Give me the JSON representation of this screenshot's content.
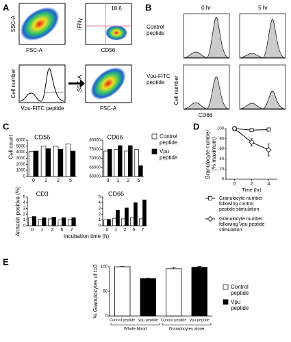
{
  "panel_labels": [
    "A",
    "B",
    "C",
    "D",
    "E"
  ],
  "flow": {
    "a_scatter1_y": "SSC-A",
    "a_scatter1_x": "FSC-A",
    "a_scatter2_y": "IFNγ",
    "a_scatter2_x": "CD56",
    "a_scatter2_gate": "18.6",
    "a_hist_y": "Cell number",
    "a_hist_x": "Vpu-FITC peptide",
    "a_scatter3_y": "SSC-A",
    "a_scatter3_x": "FSC-A",
    "b_col1": "0 hr",
    "b_col2": "5 hr",
    "b_row1": "Control peptide",
    "b_row2": "Vpu-FITC peptide",
    "b_y": "Cell number",
    "b_x": "CD66"
  },
  "chart_data": [
    {
      "type": "bar",
      "title": "CD56",
      "ylabel": "Cell count",
      "categories": [
        "0",
        "1",
        "2",
        "5"
      ],
      "series": [
        {
          "color": "#ffffff",
          "values": [
            4100,
            5000,
            5000,
            5400
          ]
        },
        {
          "color": "#000000",
          "values": [
            4200,
            4600,
            4500,
            4200
          ]
        }
      ],
      "ylim": [
        0,
        6000
      ],
      "yticks": [
        0,
        1000,
        2000,
        3000,
        4000,
        5000,
        6000
      ]
    },
    {
      "type": "bar",
      "title": "CD66",
      "categories": [
        "0",
        "1",
        "2",
        "5"
      ],
      "series": [
        {
          "name": "Control peptide",
          "color": "#ffffff",
          "values": [
            74000,
            75000,
            74000,
            75000
          ]
        },
        {
          "name": "Vpu peptide",
          "color": "#000000",
          "values": [
            75000,
            77000,
            77000,
            66000
          ]
        }
      ],
      "ylim": [
        60000,
        80000
      ],
      "yticks": [
        60000,
        65000,
        70000,
        75000,
        80000
      ],
      "legend": "right"
    },
    {
      "type": "bar",
      "title": "CD3",
      "ylabel": "Annexin positive (%)",
      "xlabel": "Incubation time (h)",
      "categories": [
        "0",
        "1",
        "2",
        "5",
        "7"
      ],
      "series": [
        {
          "color": "#ffffff",
          "values": [
            1.4,
            1.1,
            1.2,
            1.0,
            1.1
          ]
        },
        {
          "color": "#000000",
          "values": [
            1.6,
            1.4,
            1.5,
            1.4,
            1.4
          ]
        }
      ],
      "ylim": [
        0,
        5
      ],
      "yticks": [
        0,
        1,
        2,
        3,
        4,
        5
      ]
    },
    {
      "type": "bar",
      "title": "CD66",
      "categories": [
        "0",
        "1",
        "2",
        "5",
        "7"
      ],
      "series": [
        {
          "color": "#ffffff",
          "values": [
            1.0,
            1.3,
            1.2,
            1.4,
            1.2
          ]
        },
        {
          "color": "#000000",
          "values": [
            1.1,
            2.7,
            3.1,
            4.0,
            4.5
          ]
        }
      ],
      "ylim": [
        0,
        5
      ],
      "yticks": [
        0,
        1,
        2,
        3,
        4,
        5
      ]
    },
    {
      "type": "line",
      "ylabel": "Granulocyte number (% maximum)",
      "xlabel": "Time (hr)",
      "x": [
        0,
        2,
        4
      ],
      "series": [
        {
          "name": "Granulocyte number following control peptide stimulation",
          "color": "#000000",
          "marker": "square",
          "values": [
            100,
            97,
            98
          ]
        },
        {
          "name": "Granulocyte number following Vpu peptide stimulation",
          "color": "#000000",
          "marker": "diamond",
          "values": [
            100,
            73,
            58
          ],
          "errors": [
            0,
            7,
            12
          ]
        }
      ],
      "xlim": [
        -1,
        5
      ],
      "xticks": [
        0,
        2,
        4
      ],
      "ylim": [
        0,
        100
      ],
      "yticks": [
        0,
        20,
        40,
        60,
        80,
        100
      ],
      "legend": "bottom"
    },
    {
      "type": "bar",
      "ylabel": "% Granulocytes of t=0",
      "categories": [
        "Control peptide",
        "Vpu peptide",
        "Control peptide",
        "Vpu peptide"
      ],
      "groups": [
        "Whole blood",
        "Granulocytes alone"
      ],
      "values": [
        100,
        76,
        96,
        99
      ],
      "errors": [
        0.5,
        1,
        3,
        1.5
      ],
      "colors": [
        "#ffffff",
        "#000000",
        "#ffffff",
        "#000000"
      ],
      "legend_entries": [
        {
          "name": "Control peptide",
          "color": "#ffffff"
        },
        {
          "name": "Vpu peptide",
          "color": "#000000"
        }
      ],
      "ylim": [
        0,
        100
      ],
      "yticks": [
        0,
        50,
        100
      ],
      "legend": "right"
    }
  ]
}
